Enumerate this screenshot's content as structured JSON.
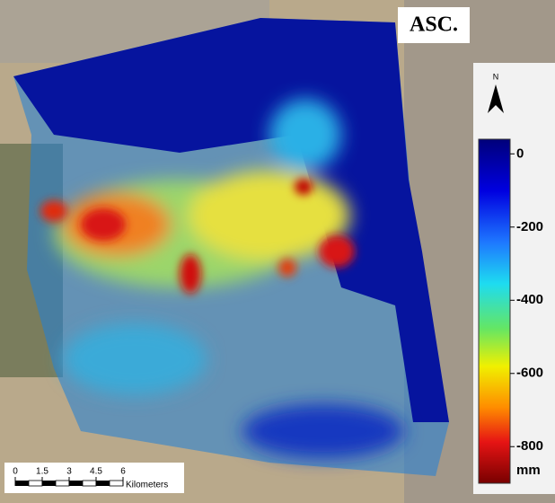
{
  "title": "ASC.",
  "north": "N",
  "colorbar": {
    "ticks": [
      0,
      -200,
      -400,
      -600,
      -800
    ],
    "unit": "mm",
    "lim": [
      40,
      -900
    ]
  },
  "scale_bar": {
    "ticks": [
      0,
      1.5,
      3,
      4.5,
      6
    ],
    "unit": "Kilometers"
  }
}
